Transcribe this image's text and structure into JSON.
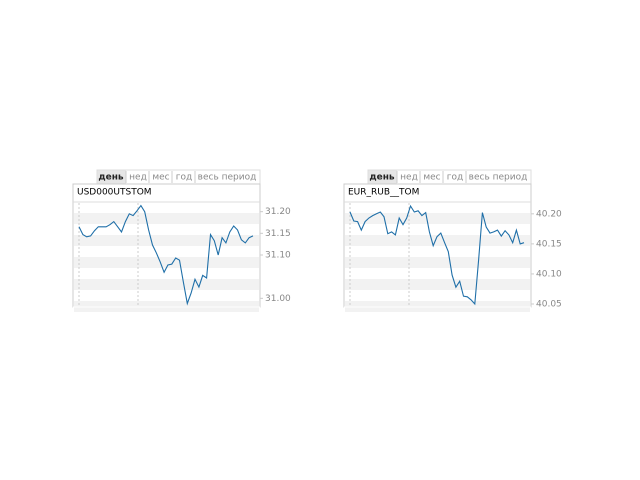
{
  "chart_data": [
    {
      "type": "line",
      "title": "USD000UTSTOM",
      "tabs": [
        "день",
        "нед",
        "мес",
        "год",
        "весь период"
      ],
      "color": "#1f6fa8",
      "ylim": [
        30.98,
        31.22
      ],
      "yticks": [
        {
          "value": 31,
          "label": "31.00"
        },
        {
          "value": 31.1,
          "label": "31.10"
        },
        31.15,
        {
          "value": 31.2,
          "label": "31.20"
        }
      ],
      "values": [
        31.165,
        31.147,
        31.142,
        31.144,
        31.156,
        31.165,
        31.165,
        31.165,
        31.17,
        31.177,
        31.165,
        31.153,
        31.177,
        31.195,
        31.191,
        31.202,
        31.214,
        31.2,
        31.158,
        31.123,
        31.105,
        31.084,
        31.06,
        31.077,
        31.079,
        31.093,
        31.088,
        31.037,
        30.988,
        31.012,
        31.044,
        31.026,
        31.053,
        31.047,
        31.147,
        31.133,
        31.1,
        31.14,
        31.128,
        31.153,
        31.167,
        31.158,
        31.135,
        31.128,
        31.14,
        31.144
      ]
    },
    {
      "type": "line",
      "title": "EUR_RUB__TOM",
      "tabs": [
        "день",
        "нед",
        "мес",
        "год",
        "весь период"
      ],
      "color": "#1f6fa8",
      "ylim": [
        40.045,
        40.218
      ],
      "yticks": [
        40.05,
        {
          "value": 40.1,
          "label": "40.10"
        },
        40.15,
        {
          "value": 40.2,
          "label": "40.20"
        }
      ],
      "values": [
        40.203,
        40.188,
        40.187,
        40.173,
        40.187,
        40.193,
        40.197,
        40.2,
        40.203,
        40.195,
        40.167,
        40.17,
        40.165,
        40.193,
        40.182,
        40.193,
        40.213,
        40.203,
        40.205,
        40.197,
        40.202,
        40.17,
        40.147,
        40.162,
        40.168,
        40.152,
        40.137,
        40.098,
        40.078,
        40.088,
        40.063,
        40.062,
        40.057,
        40.05,
        40.123,
        40.202,
        40.178,
        40.168,
        40.17,
        40.173,
        40.163,
        40.172,
        40.165,
        40.152,
        40.173,
        40.15,
        40.152
      ]
    }
  ]
}
